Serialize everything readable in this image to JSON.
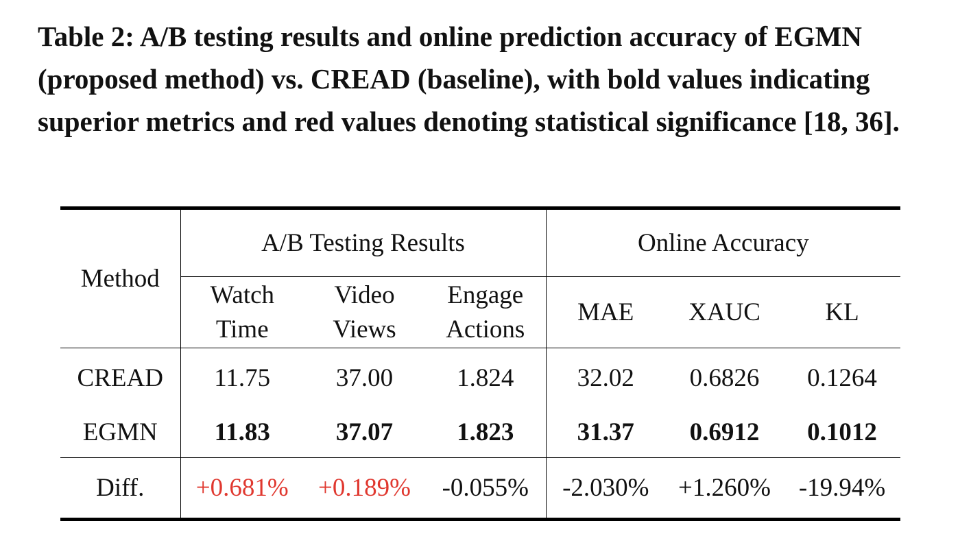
{
  "caption": "Table 2: A/B testing results and online prediction accuracy of EGMN (proposed method) vs. CREAD (baseline), with bold values indicating superior metrics and red values denoting statistical significance [18, 36].",
  "table": {
    "method_header": "Method",
    "groups": [
      {
        "label": "A/B Testing Results",
        "columns": [
          "Watch Time",
          "Video Views",
          "Engage Actions"
        ]
      },
      {
        "label": "Online Accuracy",
        "columns": [
          "MAE",
          "XAUC",
          "KL"
        ]
      }
    ],
    "rows": [
      {
        "method": "CREAD",
        "values": [
          "11.75",
          "37.00",
          "1.824",
          "32.02",
          "0.6826",
          "0.1264"
        ],
        "bold": false
      },
      {
        "method": "EGMN",
        "values": [
          "11.83",
          "37.07",
          "1.823",
          "31.37",
          "0.6912",
          "0.1012"
        ],
        "bold": true
      },
      {
        "method": "Diff.",
        "values": [
          "+0.681%",
          "+0.189%",
          "-0.055%",
          "-2.030%",
          "+1.260%",
          "-19.94%"
        ],
        "bold": false,
        "colors": [
          "#e0382f",
          "#e0382f",
          null,
          null,
          null,
          null
        ]
      }
    ]
  }
}
